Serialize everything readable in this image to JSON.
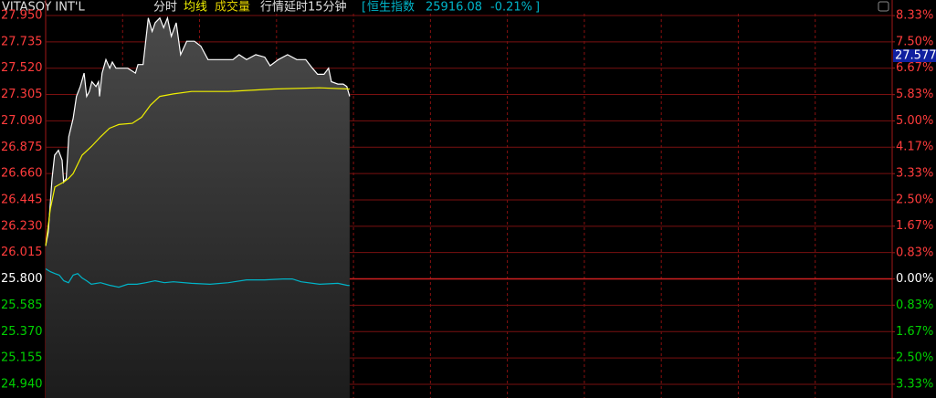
{
  "header": {
    "name": "VITASOY INT'L",
    "tabs": [
      "分时",
      "均线",
      "成交量"
    ],
    "delay_note": "行情延时15分钟",
    "index_open": "[",
    "index_name": "恒生指数",
    "index_value": "25916.08",
    "index_change": "-0.21%",
    "index_close": "]"
  },
  "chart_data": {
    "type": "line",
    "price_marker": "27.577",
    "xlim": [
      0,
      330
    ],
    "ylim": [
      24.828,
      28.002
    ],
    "y2lim": [
      -3.767,
      8.535
    ],
    "base": 25.8,
    "yticks": [
      {
        "value": 27.95,
        "label": "27.950"
      },
      {
        "value": 27.735,
        "label": "27.735"
      },
      {
        "value": 27.52,
        "label": "27.520"
      },
      {
        "value": 27.305,
        "label": "27.305"
      },
      {
        "value": 27.09,
        "label": "27.090"
      },
      {
        "value": 26.875,
        "label": "26.875"
      },
      {
        "value": 26.66,
        "label": "26.660"
      },
      {
        "value": 26.445,
        "label": "26.445"
      },
      {
        "value": 26.23,
        "label": "26.230"
      },
      {
        "value": 26.015,
        "label": "26.015"
      },
      {
        "value": 25.8,
        "label": "25.800"
      },
      {
        "value": 25.585,
        "label": "25.585"
      },
      {
        "value": 25.37,
        "label": "25.370"
      },
      {
        "value": 25.155,
        "label": "25.155"
      },
      {
        "value": 24.94,
        "label": "24.940"
      }
    ],
    "y2ticks": [
      {
        "value": 8.33,
        "label": "8.33%"
      },
      {
        "value": 7.5,
        "label": "7.50%"
      },
      {
        "value": 6.67,
        "label": "6.67%"
      },
      {
        "value": 5.83,
        "label": "5.83%"
      },
      {
        "value": 5.0,
        "label": "5.00%"
      },
      {
        "value": 4.17,
        "label": "4.17%"
      },
      {
        "value": 3.33,
        "label": "3.33%"
      },
      {
        "value": 2.5,
        "label": "2.50%"
      },
      {
        "value": 1.67,
        "label": "1.67%"
      },
      {
        "value": 0.83,
        "label": "0.83%"
      },
      {
        "value": 0.0,
        "label": "0.00%"
      },
      {
        "value": -0.83,
        "label": "0.83%"
      },
      {
        "value": -1.67,
        "label": "1.67%"
      },
      {
        "value": -2.5,
        "label": "2.50%"
      },
      {
        "value": -3.33,
        "label": "3.33%"
      }
    ],
    "series": [
      {
        "color": "#ffffff",
        "area": true,
        "x": [
          0,
          1,
          2.5,
          3.5,
          5,
          6.4,
          7,
          8,
          9,
          10.7,
          12,
          13.5,
          15,
          16,
          17,
          18,
          19.6,
          20.6,
          21,
          22,
          23.5,
          25,
          26,
          27.4,
          29.5,
          32,
          35,
          36,
          38,
          40,
          41.5,
          42.7,
          44.5,
          46,
          47.5,
          49,
          50.9,
          52.6,
          55,
          58,
          60.5,
          63.3,
          65.8,
          69.4,
          73,
          75.4,
          78.3,
          81.9,
          85.4,
          87.5,
          90.7,
          94.3,
          97.9,
          101.4,
          104,
          106,
          108.5,
          110.3,
          111.4,
          113.9,
          116,
          117.4,
          118.5
        ],
        "values": [
          26.07,
          26.18,
          26.62,
          26.81,
          26.85,
          26.77,
          26.59,
          26.62,
          26.96,
          27.11,
          27.29,
          27.37,
          27.48,
          27.29,
          27.33,
          27.41,
          27.37,
          27.41,
          27.29,
          27.48,
          27.59,
          27.52,
          27.57,
          27.52,
          27.52,
          27.52,
          27.48,
          27.55,
          27.55,
          27.93,
          27.82,
          27.89,
          27.93,
          27.85,
          27.93,
          27.78,
          27.89,
          27.63,
          27.74,
          27.74,
          27.7,
          27.59,
          27.59,
          27.59,
          27.59,
          27.63,
          27.59,
          27.63,
          27.61,
          27.54,
          27.59,
          27.63,
          27.59,
          27.59,
          27.52,
          27.47,
          27.47,
          27.52,
          27.41,
          27.39,
          27.39,
          27.37,
          27.29
        ]
      },
      {
        "color": "#f0f000",
        "x": [
          0,
          1.8,
          3.6,
          7,
          8.9,
          10.7,
          14.2,
          17.8,
          21.4,
          24.9,
          28.5,
          33.8,
          37.4,
          40.9,
          44.5,
          49.8,
          56.9,
          71.2,
          89,
          106.8,
          118.5
        ],
        "values": [
          26.07,
          26.37,
          26.55,
          26.59,
          26.62,
          26.66,
          26.81,
          26.88,
          26.96,
          27.03,
          27.06,
          27.07,
          27.12,
          27.22,
          27.29,
          27.31,
          27.33,
          27.33,
          27.35,
          27.36,
          27.35
        ]
      },
      {
        "color": "#00b4c8",
        "axis": "y2",
        "x": [
          0,
          1.8,
          3.6,
          5.3,
          7.1,
          8.9,
          10.7,
          12.5,
          14.2,
          16,
          17.8,
          21.4,
          24.9,
          28.5,
          32,
          35.6,
          39.1,
          42.7,
          46.3,
          49.8,
          56.9,
          64.1,
          71.2,
          78.3,
          85.4,
          92.5,
          96.1,
          99.6,
          106.8,
          113.9,
          117.4,
          118.5
        ],
        "values": [
          0.32,
          0.23,
          0.17,
          0.12,
          -0.06,
          -0.12,
          0.12,
          0.17,
          0.03,
          -0.06,
          -0.17,
          -0.12,
          -0.2,
          -0.26,
          -0.17,
          -0.17,
          -0.12,
          -0.06,
          -0.12,
          -0.09,
          -0.14,
          -0.17,
          -0.12,
          -0.03,
          -0.03,
          0.0,
          0.0,
          -0.09,
          -0.17,
          -0.14,
          -0.2,
          -0.21
        ]
      }
    ]
  }
}
